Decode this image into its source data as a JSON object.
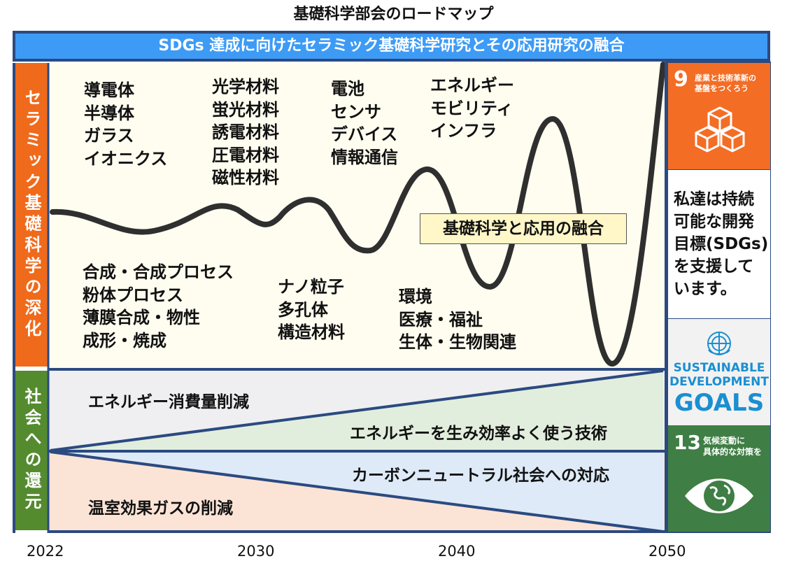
{
  "title": "基礎科学部会のロードマップ",
  "banner": "SDGs 達成に向けたセラミック基礎科学研究とその応用研究の融合",
  "left_labels": {
    "top": "セラミック基礎科学の深化",
    "bottom": "社会への還元"
  },
  "upper_groups": [
    "導電体\n半導体\nガラス\nイオニクス",
    "光学材料\n蛍光材料\n誘電材料\n圧電材料\n磁性材料",
    "電池\nセンサ\nデバイス\n情報通信",
    "エネルギー\nモビリティ\nインフラ"
  ],
  "lower_groups": [
    "合成・合成プロセス\n粉体プロセス\n薄膜合成・物性\n成形・焼成",
    "ナノ粒子\n多孔体\n構造材料",
    "環境\n医療・福祉\n生体・生物関連"
  ],
  "fusion_label": "基礎科学と応用の融合",
  "wedges": {
    "top_left": "エネルギー消費量削減",
    "top_right": "エネルギーを生み効率よく使う技術",
    "bottom_right": "カーボンニュートラル社会への対応",
    "bottom_left": "温室効果ガスの削減"
  },
  "sdg9": {
    "number": "9",
    "label": "産業と技術革新の\n基盤をつくろう"
  },
  "message": "私達は持続\n可能な開発\n目標(SDGs)\nを支援して\nいます。",
  "goals_logo": {
    "line1": "SUSTAINABLE",
    "line2": "DEVELOPMENT",
    "line3": "GOALS"
  },
  "sdg13": {
    "number": "13",
    "label": "気候変動に\n具体的な対策を"
  },
  "years": [
    "2022",
    "2030",
    "2040",
    "2050"
  ],
  "colors": {
    "banner": "#3d9bf5",
    "border": "#2b4a80",
    "left_top": "#f06a1b",
    "left_bottom": "#558b2f",
    "sdg9": "#f36d25",
    "sdg13": "#3f7e44",
    "goals_text": "#1a8fd1"
  }
}
